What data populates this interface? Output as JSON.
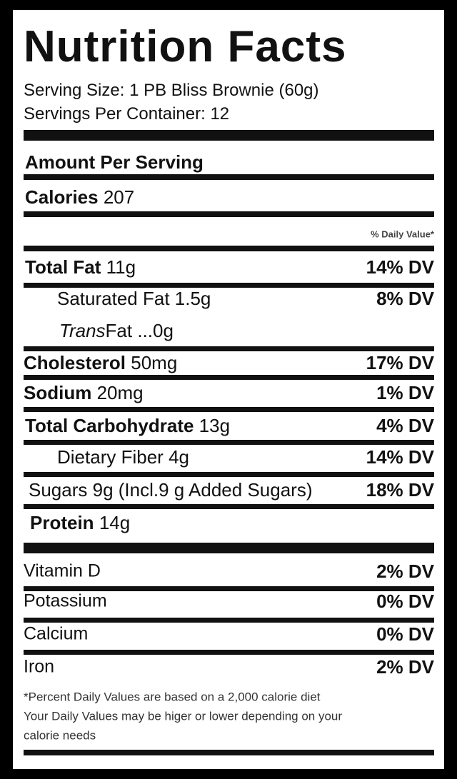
{
  "header": {
    "title": "Nutrition Facts",
    "serving_size": "Serving Size: 1 PB Bliss Brownie (60g)",
    "servings_per_container": "Servings Per Container: 12"
  },
  "amount_per_serving": "Amount Per Serving",
  "calories": {
    "label": "Calories",
    "value": "207"
  },
  "daily_value_header": "% Daily Value*",
  "nutrients": [
    {
      "name": "Total Fat",
      "amount": "11g",
      "dv": "14% DV"
    },
    {
      "name": "Saturated Fat",
      "amount": "1.5g",
      "dv": "8% DV"
    },
    {
      "name_italic": "Trans",
      "name": "Fat",
      "amount": "...0g"
    },
    {
      "name": "Cholesterol",
      "amount": "50mg",
      "dv": "17% DV"
    },
    {
      "name": "Sodium",
      "amount": "20mg",
      "dv": "1% DV"
    },
    {
      "name": "Total Carbohydrate",
      "amount": "13g",
      "dv": "4% DV"
    },
    {
      "name": "Dietary Fiber",
      "amount": "4g",
      "dv": "14% DV"
    },
    {
      "name": "Sugars",
      "amount": "9g (Incl.9 g Added Sugars)",
      "dv": "18% DV"
    },
    {
      "name": "Protein",
      "amount": "14g"
    }
  ],
  "vitamins": [
    {
      "name": "Vitamin D",
      "dv": "2% DV"
    },
    {
      "name": "Potassium",
      "dv": "0% DV"
    },
    {
      "name": "Calcium",
      "dv": "0% DV"
    },
    {
      "name": "Iron",
      "dv": "2% DV"
    }
  ],
  "footnote": [
    "*Percent Daily Values are based on a 2,000 calorie diet",
    "Your Daily Values may be higer or lower depending on your",
    "calorie needs"
  ]
}
